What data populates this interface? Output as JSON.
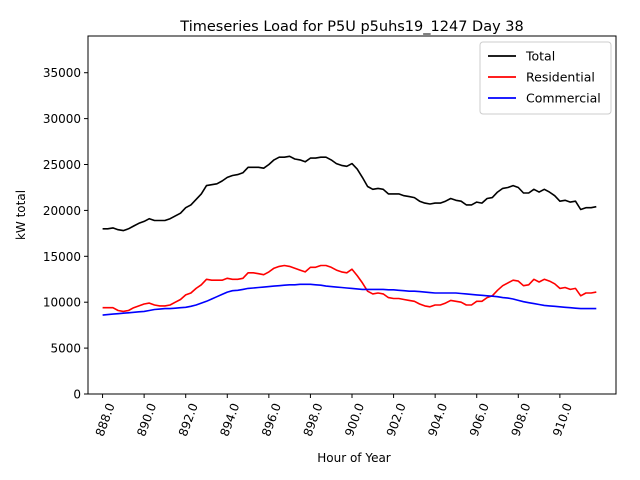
{
  "chart_data": {
    "type": "line",
    "title": "Timeseries Load for P5U p5uhs19_1247  Day 38",
    "xlabel": "Hour of Year",
    "ylabel": "kW total",
    "xlim": [
      887.3,
      912.7
    ],
    "ylim": [
      0,
      39000
    ],
    "x_ticks": [
      888,
      890,
      892,
      894,
      896,
      898,
      900,
      902,
      904,
      906,
      908,
      910
    ],
    "x_tick_labels": [
      "888.0",
      "890.0",
      "892.0",
      "894.0",
      "896.0",
      "898.0",
      "900.0",
      "902.0",
      "904.0",
      "906.0",
      "908.0",
      "910.0"
    ],
    "y_ticks": [
      0,
      5000,
      10000,
      15000,
      20000,
      25000,
      30000,
      35000
    ],
    "y_tick_labels": [
      "0",
      "5000",
      "10000",
      "15000",
      "20000",
      "25000",
      "30000",
      "35000"
    ],
    "legend_position": "top-right",
    "grid": false,
    "x": [
      888.0,
      888.25,
      888.5,
      888.75,
      889.0,
      889.25,
      889.5,
      889.75,
      890.0,
      890.25,
      890.5,
      890.75,
      891.0,
      891.25,
      891.5,
      891.75,
      892.0,
      892.25,
      892.5,
      892.75,
      893.0,
      893.25,
      893.5,
      893.75,
      894.0,
      894.25,
      894.5,
      894.75,
      895.0,
      895.25,
      895.5,
      895.75,
      896.0,
      896.25,
      896.5,
      896.75,
      897.0,
      897.25,
      897.5,
      897.75,
      898.0,
      898.25,
      898.5,
      898.75,
      899.0,
      899.25,
      899.5,
      899.75,
      900.0,
      900.25,
      900.5,
      900.75,
      901.0,
      901.25,
      901.5,
      901.75,
      902.0,
      902.25,
      902.5,
      902.75,
      903.0,
      903.25,
      903.5,
      903.75,
      904.0,
      904.25,
      904.5,
      904.75,
      905.0,
      905.25,
      905.5,
      905.75,
      906.0,
      906.25,
      906.5,
      906.75,
      907.0,
      907.25,
      907.5,
      907.75,
      908.0,
      908.25,
      908.5,
      908.75,
      909.0,
      909.25,
      909.5,
      909.75,
      910.0,
      910.25,
      910.5,
      910.75,
      911.0,
      911.25,
      911.5,
      911.75
    ],
    "series": [
      {
        "name": "Total",
        "color": "#000000",
        "values": [
          18000,
          18000,
          18100,
          17900,
          17800,
          18000,
          18300,
          18600,
          18800,
          19100,
          18900,
          18900,
          18900,
          19100,
          19400,
          19700,
          20300,
          20600,
          21200,
          21800,
          22700,
          22800,
          22900,
          23200,
          23600,
          23800,
          23900,
          24100,
          24700,
          24700,
          24700,
          24600,
          25000,
          25500,
          25800,
          25800,
          25900,
          25600,
          25500,
          25300,
          25700,
          25700,
          25800,
          25800,
          25500,
          25100,
          24900,
          24800,
          25100,
          24500,
          23600,
          22600,
          22300,
          22400,
          22300,
          21800,
          21800,
          21800,
          21600,
          21500,
          21400,
          21000,
          20800,
          20700,
          20800,
          20800,
          21000,
          21300,
          21100,
          21000,
          20600,
          20600,
          20900,
          20800,
          21300,
          21400,
          22000,
          22400,
          22500,
          22700,
          22500,
          21900,
          21900,
          22300,
          22000,
          22300,
          22000,
          21600,
          21000,
          21100,
          20900,
          21000,
          20100,
          20300,
          20300,
          20400
        ]
      },
      {
        "name": "Residential",
        "color": "#ff0000",
        "values": [
          9400,
          9400,
          9400,
          9100,
          9000,
          9100,
          9400,
          9600,
          9800,
          9900,
          9700,
          9600,
          9600,
          9700,
          10000,
          10300,
          10800,
          11000,
          11500,
          11900,
          12500,
          12400,
          12400,
          12400,
          12600,
          12500,
          12500,
          12600,
          13200,
          13200,
          13100,
          13000,
          13300,
          13700,
          13900,
          14000,
          13900,
          13700,
          13500,
          13300,
          13800,
          13800,
          14000,
          14000,
          13800,
          13500,
          13300,
          13200,
          13600,
          12900,
          12100,
          11200,
          10900,
          11000,
          10900,
          10500,
          10400,
          10400,
          10300,
          10200,
          10100,
          9800,
          9600,
          9500,
          9700,
          9700,
          9900,
          10200,
          10100,
          10000,
          9700,
          9700,
          10100,
          10100,
          10500,
          10700,
          11300,
          11800,
          12100,
          12400,
          12300,
          11800,
          11900,
          12500,
          12200,
          12500,
          12300,
          12000,
          11500,
          11600,
          11400,
          11500,
          10700,
          11000,
          11000,
          11100
        ]
      },
      {
        "name": "Commercial",
        "color": "#0000ff",
        "values": [
          8600,
          8650,
          8700,
          8750,
          8800,
          8850,
          8900,
          8950,
          9000,
          9100,
          9200,
          9250,
          9300,
          9300,
          9350,
          9400,
          9450,
          9550,
          9700,
          9900,
          10100,
          10350,
          10600,
          10850,
          11100,
          11250,
          11300,
          11400,
          11500,
          11550,
          11600,
          11650,
          11700,
          11750,
          11800,
          11850,
          11900,
          11900,
          11950,
          11950,
          11950,
          11900,
          11850,
          11750,
          11700,
          11650,
          11600,
          11550,
          11500,
          11450,
          11400,
          11400,
          11400,
          11400,
          11400,
          11350,
          11350,
          11300,
          11250,
          11200,
          11200,
          11150,
          11100,
          11050,
          11000,
          11000,
          11000,
          11000,
          11000,
          10950,
          10900,
          10850,
          10800,
          10750,
          10700,
          10650,
          10600,
          10500,
          10450,
          10350,
          10200,
          10050,
          9950,
          9850,
          9750,
          9650,
          9600,
          9550,
          9500,
          9450,
          9400,
          9350,
          9300,
          9300,
          9300,
          9300
        ]
      }
    ]
  }
}
